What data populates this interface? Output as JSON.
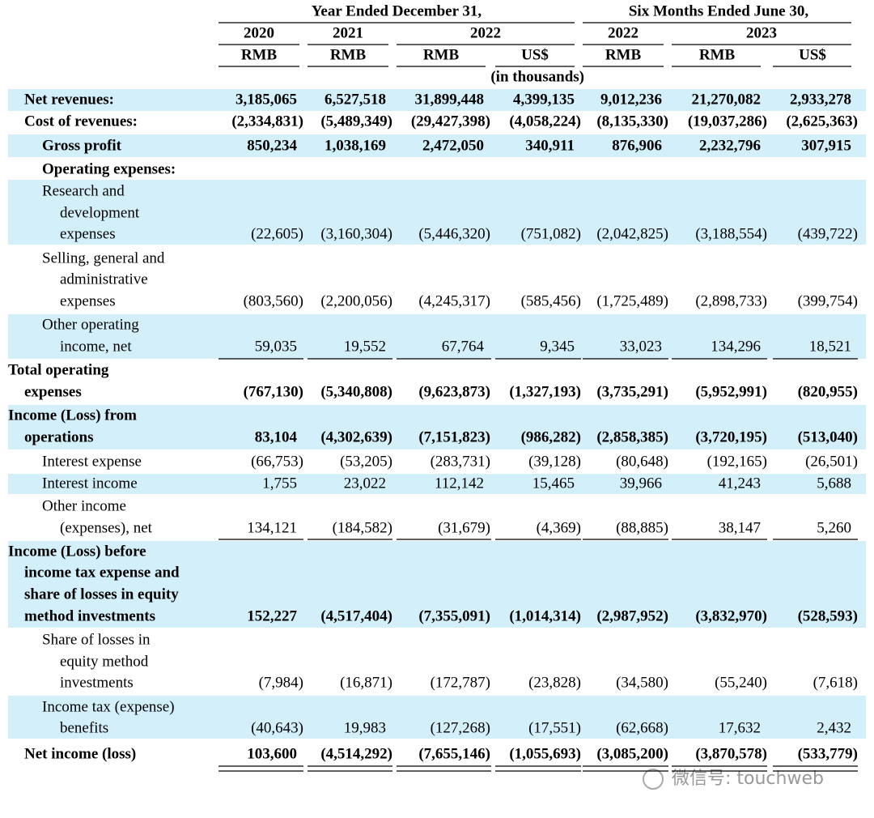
{
  "header": {
    "groups": [
      "Year Ended December 31,",
      "Six Months Ended June 30,"
    ],
    "years": [
      "2020",
      "2021",
      "2022",
      "2022",
      "2023"
    ],
    "currencies": [
      "RMB",
      "RMB",
      "RMB",
      "US$",
      "RMB",
      "RMB",
      "US$"
    ],
    "unit_note": "(in thousands)"
  },
  "rows": [
    {
      "label": [
        "Net revenues:"
      ],
      "values": [
        "3,185,065",
        "6,527,518",
        "31,899,448",
        "4,399,135",
        "9,012,236",
        "21,270,082",
        "2,933,278"
      ]
    },
    {
      "label": [
        "Cost of revenues:"
      ],
      "values": [
        "(2,334,831)",
        "(5,489,349)",
        "(29,427,398)",
        "(4,058,224)",
        "(8,135,330)",
        "(19,037,286)",
        "(2,625,363)"
      ]
    },
    {
      "label": [
        "Gross profit"
      ],
      "values": [
        "850,234",
        "1,038,169",
        "2,472,050",
        "340,911",
        "876,906",
        "2,232,796",
        "307,915"
      ]
    },
    {
      "label": [
        "Operating expenses:"
      ],
      "values": []
    },
    {
      "label": [
        "Research and",
        "development",
        "expenses"
      ],
      "values": [
        "(22,605)",
        "(3,160,304)",
        "(5,446,320)",
        "(751,082)",
        "(2,042,825)",
        "(3,188,554)",
        "(439,722)"
      ]
    },
    {
      "label": [
        "Selling, general and",
        "administrative",
        "expenses"
      ],
      "values": [
        "(803,560)",
        "(2,200,056)",
        "(4,245,317)",
        "(585,456)",
        "(1,725,489)",
        "(2,898,733)",
        "(399,754)"
      ]
    },
    {
      "label": [
        "Other operating",
        "income, net"
      ],
      "values": [
        "59,035",
        "19,552",
        "67,764",
        "9,345",
        "33,023",
        "134,296",
        "18,521"
      ]
    },
    {
      "label": [
        "Total operating",
        "expenses"
      ],
      "values": [
        "(767,130)",
        "(5,340,808)",
        "(9,623,873)",
        "(1,327,193)",
        "(3,735,291)",
        "(5,952,991)",
        "(820,955)"
      ]
    },
    {
      "label": [
        "Income (Loss) from",
        "operations"
      ],
      "values": [
        "83,104",
        "(4,302,639)",
        "(7,151,823)",
        "(986,282)",
        "(2,858,385)",
        "(3,720,195)",
        "(513,040)"
      ]
    },
    {
      "label": [
        "Interest expense"
      ],
      "values": [
        "(66,753)",
        "(53,205)",
        "(283,731)",
        "(39,128)",
        "(80,648)",
        "(192,165)",
        "(26,501)"
      ]
    },
    {
      "label": [
        "Interest income"
      ],
      "values": [
        "1,755",
        "23,022",
        "112,142",
        "15,465",
        "39,966",
        "41,243",
        "5,688"
      ]
    },
    {
      "label": [
        "Other income",
        "(expenses), net"
      ],
      "values": [
        "134,121",
        "(184,582)",
        "(31,679)",
        "(4,369)",
        "(88,885)",
        "38,147",
        "5,260"
      ]
    },
    {
      "label": [
        "Income (Loss) before",
        "income tax expense and",
        "share of losses in equity",
        "method investments"
      ],
      "values": [
        "152,227",
        "(4,517,404)",
        "(7,355,091)",
        "(1,014,314)",
        "(2,987,952)",
        "(3,832,970)",
        "(528,593)"
      ]
    },
    {
      "label": [
        "Share of losses in",
        "equity method",
        "investments"
      ],
      "values": [
        "(7,984)",
        "(16,871)",
        "(172,787)",
        "(23,828)",
        "(34,580)",
        "(55,240)",
        "(7,618)"
      ]
    },
    {
      "label": [
        "Income tax (expense)",
        "benefits"
      ],
      "values": [
        "(40,643)",
        "19,983",
        "(127,268)",
        "(17,551)",
        "(62,668)",
        "17,632",
        "2,432"
      ]
    },
    {
      "label": [
        "Net income (loss)"
      ],
      "values": [
        "103,600",
        "(4,514,292)",
        "(7,655,146)",
        "(1,055,693)",
        "(3,085,200)",
        "(3,870,578)",
        "(533,779)"
      ]
    }
  ],
  "watermark": "微信号: touchweb"
}
